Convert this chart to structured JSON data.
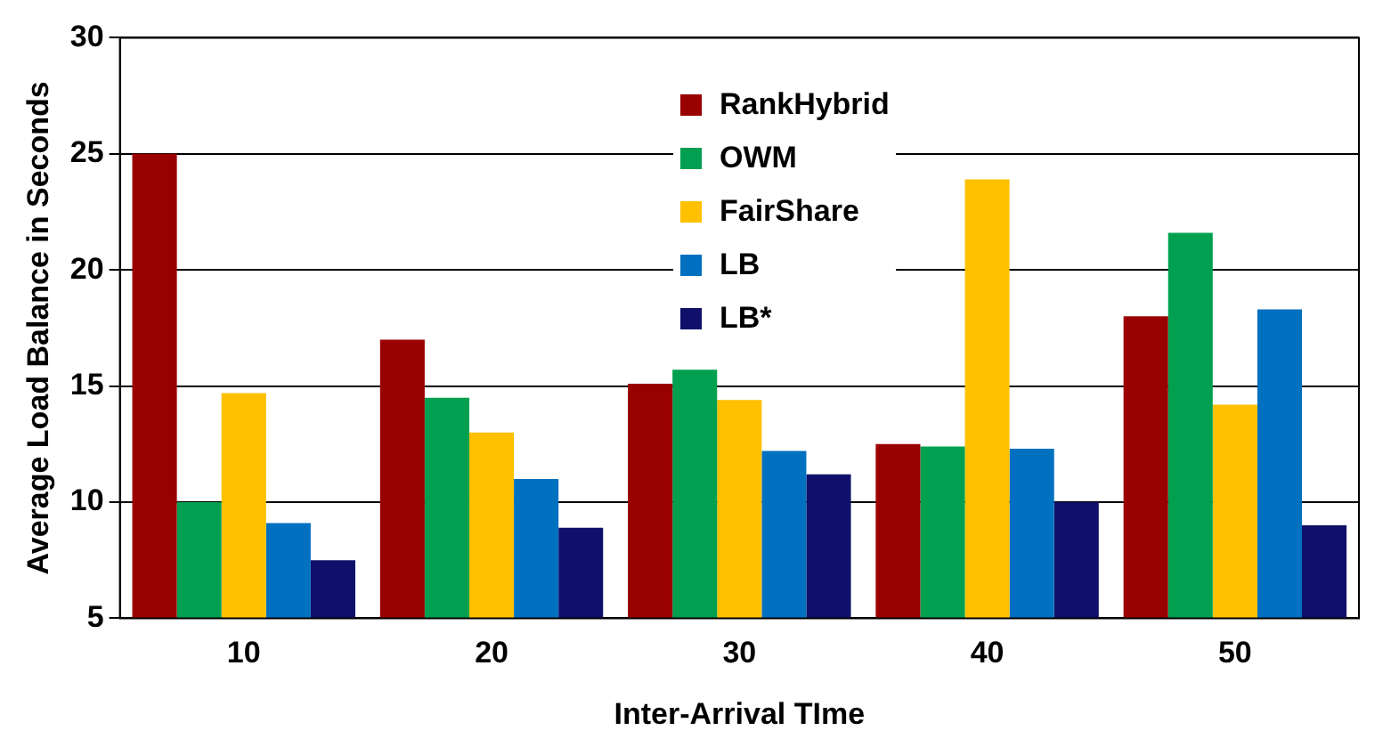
{
  "chart_data": {
    "type": "bar",
    "xlabel": "Inter-Arrival TIme",
    "ylabel": "Average Load Balance in Seconds",
    "categories": [
      "10",
      "20",
      "30",
      "40",
      "50"
    ],
    "series": [
      {
        "name": "RankHybrid",
        "color": "#990000",
        "values": [
          25,
          17,
          15.1,
          12.5,
          18
        ]
      },
      {
        "name": "OWM",
        "color": "#00a050",
        "values": [
          10,
          14.5,
          15.7,
          12.4,
          21.6
        ]
      },
      {
        "name": "FairShare",
        "color": "#ffc000",
        "values": [
          14.7,
          13,
          14.4,
          23.9,
          14.2
        ]
      },
      {
        "name": "LB",
        "color": "#0070c0",
        "values": [
          9.1,
          11,
          12.2,
          12.3,
          18.3
        ]
      },
      {
        "name": "LB*",
        "color": "#10106a",
        "values": [
          7.5,
          8.9,
          11.2,
          10,
          9
        ]
      }
    ],
    "ylim": [
      5,
      30
    ],
    "yticks": [
      5,
      10,
      15,
      20,
      25,
      30
    ],
    "grid": "y",
    "legend": "top"
  }
}
